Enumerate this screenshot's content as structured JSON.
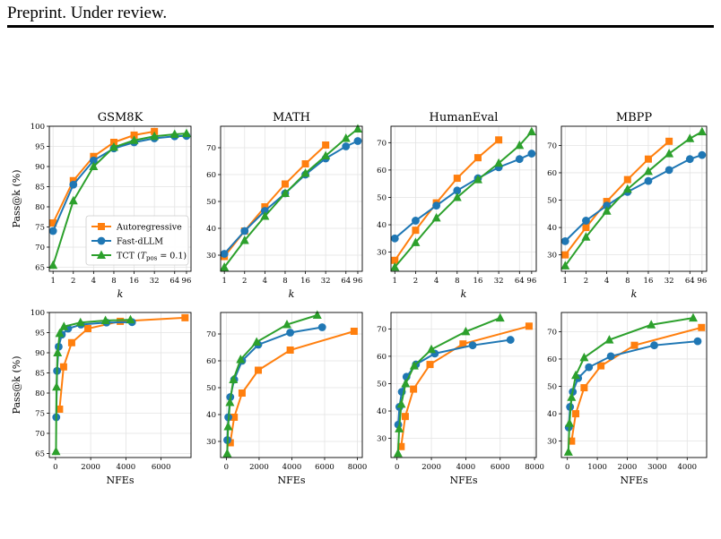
{
  "header": {
    "text": "Preprint. Under review."
  },
  "colors": {
    "Autoregressive": "#ff7f0e",
    "Fast-dLLM": "#1f77b4",
    "TCT": "#2ca02c"
  },
  "legend": {
    "entries": [
      "Autoregressive",
      "Fast-dLLM",
      "TCT (T_pos = 0.1)"
    ]
  },
  "chart_data": [
    {
      "type": "line",
      "title": "GSM8K",
      "xlabel": "k",
      "ylabel": "Pass@k (%)",
      "xscale": "log",
      "xticks": [
        1,
        2,
        4,
        8,
        16,
        32,
        64,
        96
      ],
      "yticks": [
        65,
        70,
        75,
        80,
        85,
        90,
        95,
        100
      ],
      "ylim": [
        64,
        100
      ],
      "legend": "lower-right",
      "grid": true,
      "series": [
        {
          "name": "Autoregressive",
          "marker": "square",
          "x": [
            1,
            2,
            4,
            8,
            16,
            32
          ],
          "values": [
            76,
            86.5,
            92.5,
            96,
            97.8,
            98.7
          ]
        },
        {
          "name": "Fast-dLLM",
          "marker": "circle",
          "x": [
            1,
            2,
            4,
            8,
            16,
            32,
            64,
            96
          ],
          "values": [
            74,
            85.5,
            91.5,
            94.5,
            96,
            97,
            97.5,
            97.6
          ]
        },
        {
          "name": "TCT (T_pos = 0.1)",
          "marker": "triangle",
          "x": [
            1,
            2,
            4,
            8,
            16,
            32,
            64,
            96
          ],
          "values": [
            65.5,
            81.5,
            90,
            94.8,
            96.5,
            97.5,
            98,
            98.2
          ]
        }
      ]
    },
    {
      "type": "line",
      "title": "MATH",
      "xlabel": "k",
      "ylabel": "",
      "xscale": "log",
      "xticks": [
        1,
        2,
        4,
        8,
        16,
        32,
        64,
        96
      ],
      "yticks": [
        30,
        40,
        50,
        60,
        70
      ],
      "ylim": [
        24,
        78
      ],
      "grid": true,
      "series": [
        {
          "name": "Autoregressive",
          "marker": "square",
          "x": [
            1,
            2,
            4,
            8,
            16,
            32
          ],
          "values": [
            29.5,
            39,
            48,
            56.5,
            64,
            71
          ]
        },
        {
          "name": "Fast-dLLM",
          "marker": "circle",
          "x": [
            1,
            2,
            4,
            8,
            16,
            32,
            64,
            96
          ],
          "values": [
            30.5,
            39,
            46.5,
            53,
            60,
            66,
            70.5,
            72.5
          ]
        },
        {
          "name": "TCT (T_pos = 0.1)",
          "marker": "triangle",
          "x": [
            1,
            2,
            4,
            8,
            16,
            32,
            64,
            96
          ],
          "values": [
            25.5,
            35.5,
            44.5,
            53,
            60.5,
            67,
            73.5,
            77
          ]
        }
      ]
    },
    {
      "type": "line",
      "title": "HumanEval",
      "xlabel": "k",
      "ylabel": "",
      "xscale": "log",
      "xticks": [
        1,
        2,
        4,
        8,
        16,
        32,
        64,
        96
      ],
      "yticks": [
        30,
        40,
        50,
        60,
        70
      ],
      "ylim": [
        23,
        76
      ],
      "grid": true,
      "series": [
        {
          "name": "Autoregressive",
          "marker": "square",
          "x": [
            1,
            2,
            4,
            8,
            16,
            32
          ],
          "values": [
            27,
            38,
            48,
            57,
            64.5,
            71
          ]
        },
        {
          "name": "Fast-dLLM",
          "marker": "circle",
          "x": [
            1,
            2,
            4,
            8,
            16,
            32,
            64,
            96
          ],
          "values": [
            35,
            41.5,
            47,
            52.5,
            57,
            61,
            64,
            66
          ]
        },
        {
          "name": "TCT (T_pos = 0.1)",
          "marker": "triangle",
          "x": [
            1,
            2,
            4,
            8,
            16,
            32,
            64,
            96
          ],
          "values": [
            24.5,
            33.5,
            42.5,
            50,
            56.5,
            62.5,
            69,
            74
          ]
        }
      ]
    },
    {
      "type": "line",
      "title": "MBPP",
      "xlabel": "k",
      "ylabel": "",
      "xscale": "log",
      "xticks": [
        1,
        2,
        4,
        8,
        16,
        32,
        64,
        96
      ],
      "yticks": [
        30,
        40,
        50,
        60,
        70
      ],
      "ylim": [
        24,
        77
      ],
      "grid": true,
      "series": [
        {
          "name": "Autoregressive",
          "marker": "square",
          "x": [
            1,
            2,
            4,
            8,
            16,
            32
          ],
          "values": [
            30,
            40,
            49.5,
            57.5,
            65,
            71.5
          ]
        },
        {
          "name": "Fast-dLLM",
          "marker": "circle",
          "x": [
            1,
            2,
            4,
            8,
            16,
            32,
            64,
            96
          ],
          "values": [
            35,
            42.5,
            48,
            53,
            57,
            61,
            65,
            66.5
          ]
        },
        {
          "name": "TCT (T_pos = 0.1)",
          "marker": "triangle",
          "x": [
            1,
            2,
            4,
            8,
            16,
            32,
            64,
            96
          ],
          "values": [
            26,
            36.5,
            46,
            54,
            60.5,
            67,
            72.5,
            75
          ]
        }
      ]
    },
    {
      "type": "line",
      "title": "",
      "xlabel": "NFEs",
      "ylabel": "Pass@k (%)",
      "xticks": [
        0,
        2000,
        4000,
        6000
      ],
      "xlim": [
        -350,
        7700
      ],
      "yticks": [
        65,
        70,
        75,
        80,
        85,
        90,
        95,
        100
      ],
      "ylim": [
        64,
        100
      ],
      "grid": true,
      "series": [
        {
          "name": "Autoregressive",
          "marker": "square",
          "x": [
            230,
            460,
            920,
            1840,
            3680,
            7360
          ],
          "values": [
            76,
            86.5,
            92.5,
            96,
            97.8,
            98.7
          ]
        },
        {
          "name": "Fast-dLLM",
          "marker": "circle",
          "x": [
            45,
            90,
            180,
            360,
            720,
            1450,
            2900,
            4350
          ],
          "values": [
            74,
            85.5,
            91.5,
            94.5,
            96,
            97,
            97.5,
            97.6
          ]
        },
        {
          "name": "TCT (T_pos = 0.1)",
          "marker": "triangle",
          "x": [
            30,
            60,
            120,
            240,
            480,
            1420,
            2840,
            4260
          ],
          "values": [
            65.5,
            81.5,
            90,
            94.8,
            96.5,
            97.5,
            98,
            98.2
          ]
        }
      ]
    },
    {
      "type": "line",
      "title": "",
      "xlabel": "NFEs",
      "ylabel": "",
      "xticks": [
        0,
        2000,
        4000,
        6000,
        8000
      ],
      "xlim": [
        -350,
        8300
      ],
      "yticks": [
        30,
        40,
        50,
        60,
        70
      ],
      "ylim": [
        24,
        78
      ],
      "grid": true,
      "series": [
        {
          "name": "Autoregressive",
          "marker": "square",
          "x": [
            240,
            480,
            960,
            1950,
            3900,
            7800
          ],
          "values": [
            29.5,
            39,
            48,
            56.5,
            64,
            71
          ]
        },
        {
          "name": "Fast-dLLM",
          "marker": "circle",
          "x": [
            60,
            120,
            240,
            480,
            960,
            1950,
            3900,
            5850
          ],
          "values": [
            30.5,
            39,
            46.5,
            53,
            60,
            66,
            70.5,
            72.5
          ]
        },
        {
          "name": "TCT (T_pos = 0.1)",
          "marker": "triangle",
          "x": [
            55,
            110,
            220,
            430,
            870,
            1850,
            3700,
            5550
          ],
          "values": [
            25.5,
            35.5,
            44.5,
            53,
            60.5,
            67,
            73.5,
            77
          ]
        }
      ]
    },
    {
      "type": "line",
      "title": "",
      "xlabel": "NFEs",
      "ylabel": "",
      "xticks": [
        0,
        2000,
        4000,
        6000,
        8000
      ],
      "xlim": [
        -350,
        8100
      ],
      "yticks": [
        30,
        40,
        50,
        60,
        70
      ],
      "ylim": [
        23,
        76
      ],
      "grid": true,
      "series": [
        {
          "name": "Autoregressive",
          "marker": "square",
          "x": [
            240,
            480,
            960,
            1920,
            3840,
            7680
          ],
          "values": [
            27,
            38,
            48,
            57,
            64.5,
            71
          ]
        },
        {
          "name": "Fast-dLLM",
          "marker": "circle",
          "x": [
            70,
            140,
            280,
            550,
            1100,
            2200,
            4400,
            6600
          ],
          "values": [
            35,
            41.5,
            47,
            52.5,
            57,
            61,
            64,
            66
          ]
        },
        {
          "name": "TCT (T_pos = 0.1)",
          "marker": "triangle",
          "x": [
            60,
            125,
            250,
            500,
            1000,
            2000,
            4000,
            6000
          ],
          "values": [
            24.5,
            33.5,
            42.5,
            50,
            56.5,
            62.5,
            69,
            74
          ]
        }
      ]
    },
    {
      "type": "line",
      "title": "",
      "xlabel": "NFEs",
      "ylabel": "",
      "xticks": [
        0,
        1000,
        2000,
        3000,
        4000
      ],
      "xlim": [
        -200,
        4650
      ],
      "yticks": [
        30,
        40,
        50,
        60,
        70
      ],
      "ylim": [
        24,
        77
      ],
      "grid": true,
      "series": [
        {
          "name": "Autoregressive",
          "marker": "square",
          "x": [
            140,
            280,
            560,
            1120,
            2240,
            4480
          ],
          "values": [
            30,
            40,
            49.5,
            57.5,
            65,
            71.5
          ]
        },
        {
          "name": "Fast-dLLM",
          "marker": "circle",
          "x": [
            45,
            90,
            180,
            360,
            720,
            1450,
            2900,
            4350
          ],
          "values": [
            35,
            42.5,
            48,
            53,
            57,
            61,
            65,
            66.5
          ]
        },
        {
          "name": "TCT (T_pos = 0.1)",
          "marker": "triangle",
          "x": [
            35,
            70,
            140,
            280,
            560,
            1400,
            2800,
            4200
          ],
          "values": [
            26,
            36.5,
            46,
            54,
            60.5,
            67,
            72.5,
            75
          ]
        }
      ]
    }
  ]
}
